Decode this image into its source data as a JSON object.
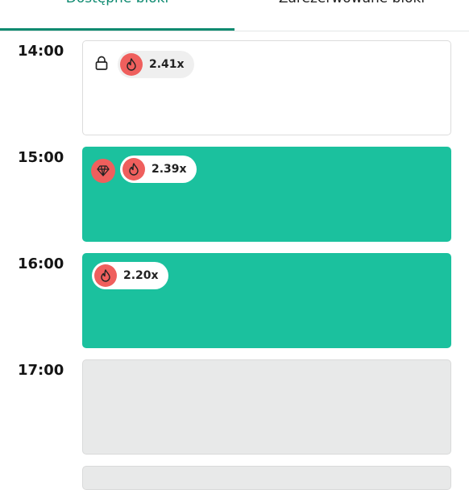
{
  "tabs": {
    "available": "Dostępne bloki",
    "reserved": "Zarezerwowane bloki",
    "active": "available"
  },
  "slots": [
    {
      "time": "14:00",
      "multiplier": "2.41x",
      "state": "locked"
    },
    {
      "time": "15:00",
      "multiplier": "2.39x",
      "state": "premium"
    },
    {
      "time": "16:00",
      "multiplier": "2.20x",
      "state": "available"
    },
    {
      "time": "17:00",
      "multiplier": "",
      "state": "unavailable"
    }
  ],
  "colors": {
    "accent": "#0e8a70",
    "slot_teal": "#1bc19e",
    "fire": "#ef5f5d",
    "slot_grey": "#e8e9e9"
  },
  "icons": {
    "lock": "lock-icon",
    "fire": "fire-icon",
    "diamond": "diamond-icon"
  }
}
